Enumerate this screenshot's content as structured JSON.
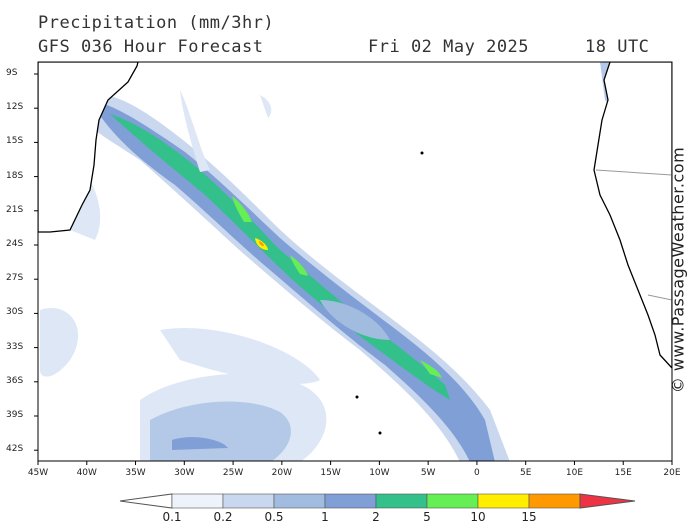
{
  "header": {
    "title": "Precipitation (mm/3hr)",
    "model": "GFS 036 Hour Forecast",
    "date": "Fri 02 May 2025",
    "time": "18 UTC"
  },
  "credit": "© www.PassageWeather.com",
  "latitudes": [
    "9S",
    "12S",
    "15S",
    "18S",
    "21S",
    "24S",
    "27S",
    "30S",
    "33S",
    "36S",
    "39S",
    "42S"
  ],
  "longitudes": [
    "45W",
    "40W",
    "35W",
    "30W",
    "25W",
    "20W",
    "15W",
    "10W",
    "5W",
    "0",
    "5E",
    "10E",
    "15E",
    "20E"
  ],
  "colorbar": {
    "labels": [
      "0.1",
      "0.2",
      "0.5",
      "1",
      "2",
      "5",
      "10",
      "15"
    ],
    "colors": [
      "#eef3fb",
      "#c9d8ee",
      "#a2bce0",
      "#7f9fd6",
      "#33c08a",
      "#66ee55",
      "#ffee00",
      "#ff9900",
      "#ee3344",
      "#ffffff"
    ]
  },
  "colors": {
    "land_line": "#000000",
    "frame": "#000000",
    "border": "#999999"
  }
}
